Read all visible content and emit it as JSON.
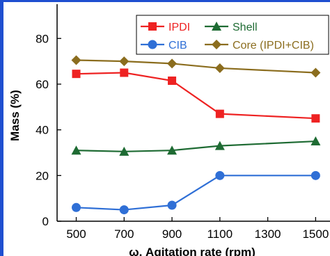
{
  "chart_data": {
    "type": "line",
    "xlabel": "ω, Agitation rate (rpm)",
    "ylabel": "Mass (%)",
    "x": [
      500,
      700,
      900,
      1100,
      1500
    ],
    "xticks": [
      500,
      700,
      900,
      1100,
      1300,
      1500
    ],
    "yticks": [
      0,
      20,
      40,
      60,
      80
    ],
    "xlim": [
      420,
      1560
    ],
    "ylim": [
      0,
      95
    ],
    "grid": false,
    "legend_position": "top-right",
    "series": [
      {
        "name": "IPDI",
        "values": [
          64.5,
          65,
          61.5,
          47,
          45
        ],
        "color": "#ee2222",
        "marker": "square"
      },
      {
        "name": "Shell",
        "values": [
          31,
          30.5,
          31,
          33,
          35
        ],
        "color": "#1e6b33",
        "marker": "triangle"
      },
      {
        "name": "CIB",
        "values": [
          6,
          5,
          7,
          20,
          20
        ],
        "color": "#2f6fd6",
        "marker": "circle"
      },
      {
        "name": "Core (IPDI+CIB)",
        "values": [
          70.5,
          70,
          69,
          67,
          65
        ],
        "color": "#8b6d1e",
        "marker": "diamond"
      }
    ]
  }
}
